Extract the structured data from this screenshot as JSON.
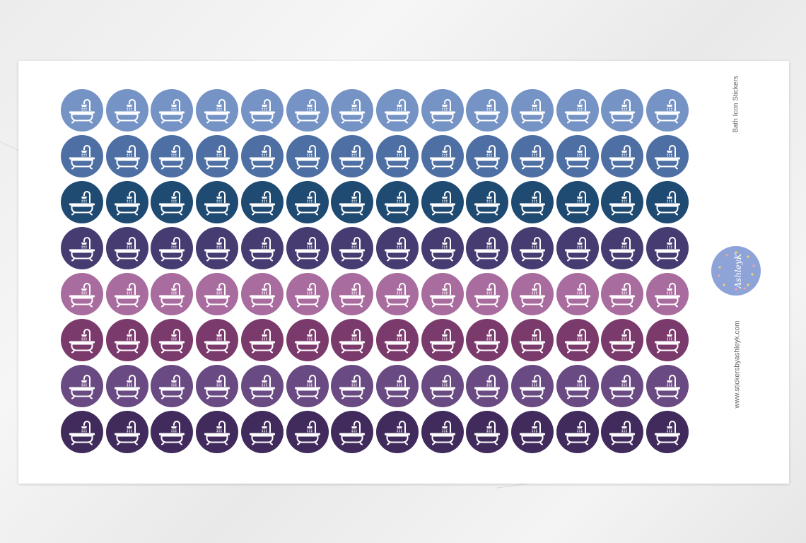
{
  "sheet": {
    "title": "Bath Icon Stickers",
    "website": "www.stickersbyashleyk.com",
    "logo_text": "by AshleyK",
    "logo_color": "#8ea3d8"
  },
  "stickers": {
    "icon": "bathtub-shower-icon",
    "columns": 14,
    "row_colors": [
      "#7593c4",
      "#4e6fa3",
      "#1f4a72",
      "#463c72",
      "#a86c9e",
      "#7b3a6c",
      "#6a4a82",
      "#412b5c"
    ]
  }
}
